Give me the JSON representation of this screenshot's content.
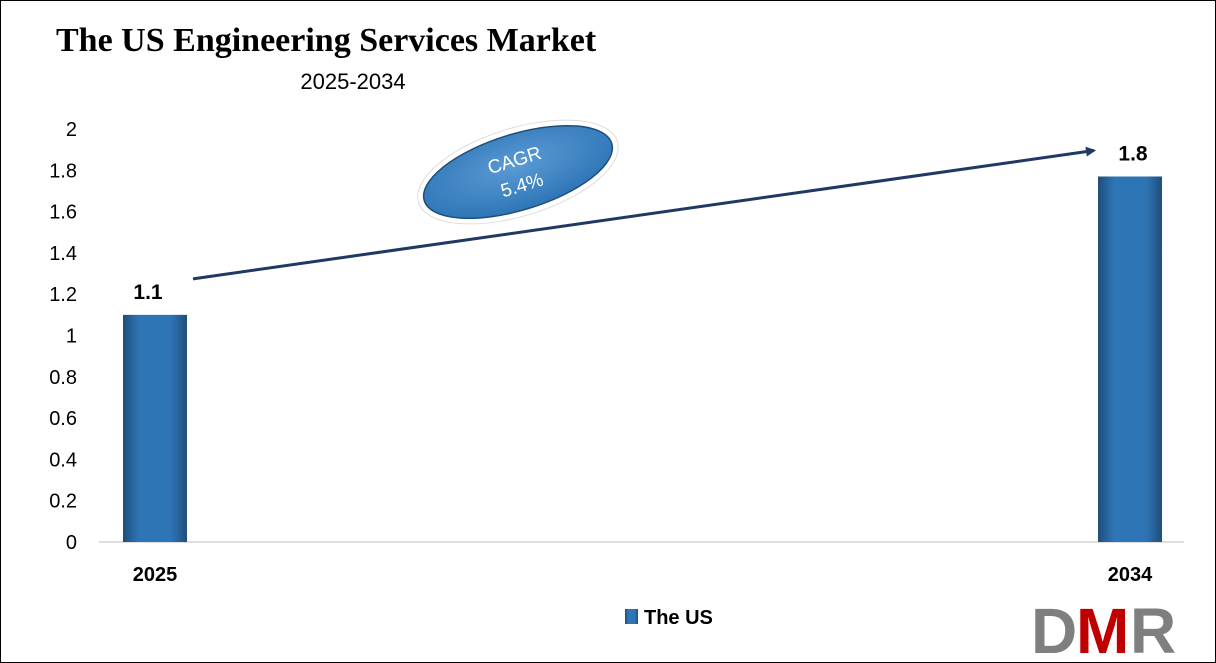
{
  "chart_data": {
    "type": "bar",
    "title": "The US Engineering Services Market",
    "subtitle": "2025-2034",
    "categories": [
      "2025",
      "2034"
    ],
    "series": [
      {
        "name": "The US",
        "values": [
          1.1,
          1.77
        ],
        "labels": [
          "1.1",
          "1.8"
        ]
      }
    ],
    "ylim": [
      0,
      2
    ],
    "yticks": [
      "0",
      "0.2",
      "0.4",
      "0.6",
      "0.8",
      "1",
      "1.2",
      "1.4",
      "1.6",
      "1.8",
      "2"
    ],
    "grid": false,
    "legend": "bottom-center",
    "annotation": {
      "line1": "CAGR",
      "line2": "5.4%"
    }
  },
  "colors": {
    "bar": "#2E75B6",
    "bar_dark": "#1F4E79",
    "arrow": "#1F3864",
    "axis": "#bfbfbf",
    "logo_gray": "#7f7f7f",
    "logo_red": "#c00000"
  },
  "logo": {
    "letters": [
      "D",
      "M",
      "R"
    ]
  }
}
